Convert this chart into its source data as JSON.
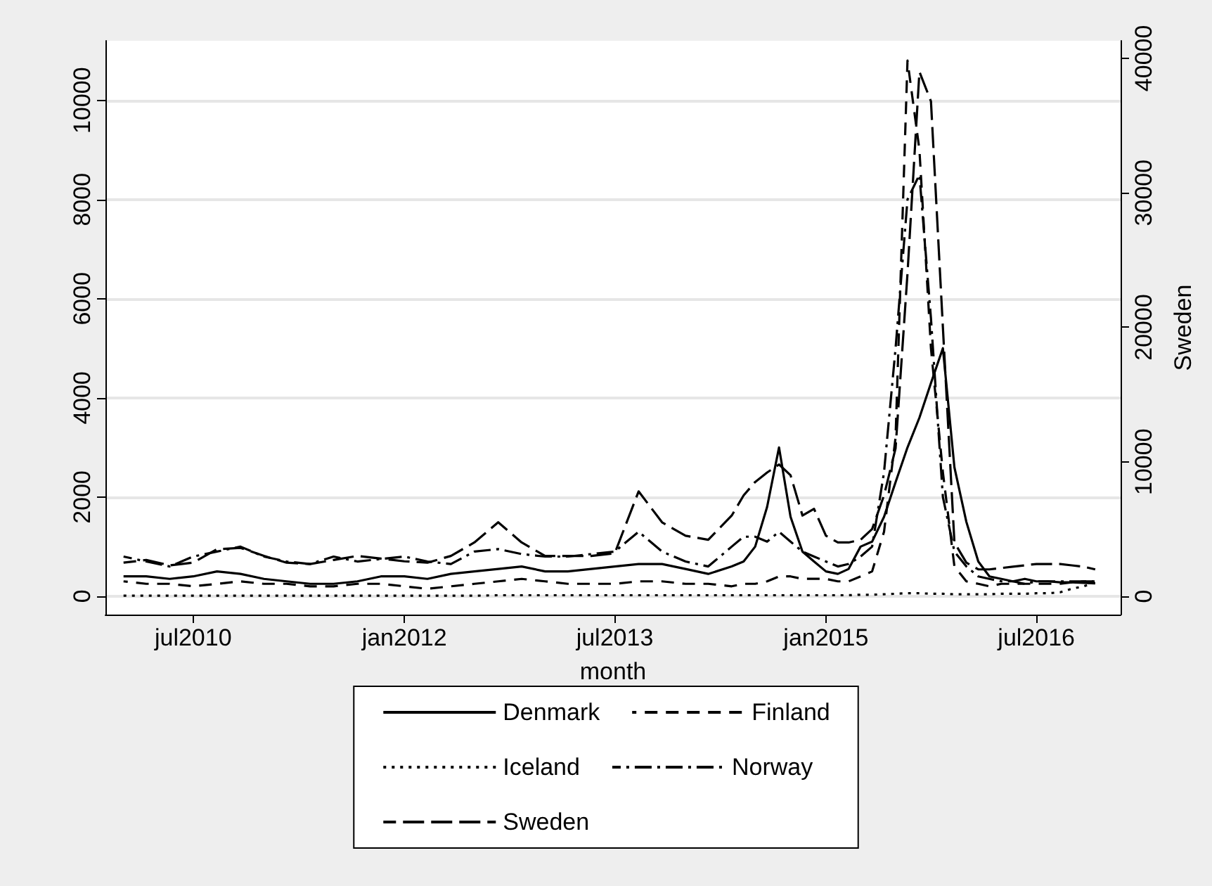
{
  "chart_data": {
    "type": "line",
    "xlabel": "month",
    "y2label": "Sweden",
    "x": [
      "2010-01",
      "2010-03",
      "2010-05",
      "2010-07",
      "2010-09",
      "2010-11",
      "2011-01",
      "2011-03",
      "2011-05",
      "2011-07",
      "2011-09",
      "2011-11",
      "2012-01",
      "2012-03",
      "2012-05",
      "2012-07",
      "2012-09",
      "2012-11",
      "2013-01",
      "2013-03",
      "2013-05",
      "2013-07",
      "2013-09",
      "2013-11",
      "2014-01",
      "2014-03",
      "2014-05",
      "2014-06",
      "2014-07",
      "2014-08",
      "2014-09",
      "2014-10",
      "2014-11",
      "2014-12",
      "2015-01",
      "2015-02",
      "2015-03",
      "2015-04",
      "2015-05",
      "2015-06",
      "2015-07",
      "2015-08",
      "2015-09",
      "2015-10",
      "2015-11",
      "2015-12",
      "2016-01",
      "2016-02",
      "2016-03",
      "2016-04",
      "2016-05",
      "2016-06",
      "2016-07",
      "2016-08",
      "2016-09",
      "2016-10",
      "2016-11",
      "2016-12"
    ],
    "series": [
      {
        "name": "Denmark",
        "color": "#000000",
        "line_style": "solid",
        "values": [
          400,
          400,
          350,
          400,
          500,
          450,
          350,
          300,
          250,
          250,
          300,
          400,
          400,
          350,
          450,
          500,
          550,
          600,
          500,
          500,
          550,
          600,
          650,
          650,
          550,
          450,
          600,
          700,
          1000,
          1800,
          3000,
          1600,
          900,
          700,
          500,
          450,
          550,
          1000,
          1100,
          1600,
          2300,
          3000,
          3600,
          4300,
          5000,
          2600,
          1500,
          700,
          400,
          350,
          300,
          350,
          300,
          300,
          280,
          280,
          270,
          260
        ]
      },
      {
        "name": "Finland",
        "color": "#000000",
        "line_style": "dashed",
        "values": [
          300,
          250,
          250,
          200,
          250,
          300,
          250,
          250,
          200,
          200,
          250,
          250,
          200,
          150,
          200,
          250,
          300,
          350,
          300,
          250,
          250,
          250,
          300,
          300,
          250,
          250,
          200,
          250,
          250,
          300,
          400,
          400,
          350,
          350,
          350,
          300,
          300,
          400,
          500,
          1300,
          3200,
          10800,
          9000,
          5000,
          2500,
          600,
          300,
          250,
          200,
          250,
          250,
          250,
          250,
          250,
          250,
          280,
          300,
          300
        ]
      },
      {
        "name": "Iceland",
        "color": "#000000",
        "line_style": "dotted",
        "values": [
          10,
          10,
          10,
          10,
          10,
          10,
          10,
          10,
          10,
          10,
          10,
          10,
          10,
          10,
          10,
          10,
          20,
          20,
          20,
          20,
          20,
          20,
          20,
          20,
          20,
          20,
          20,
          20,
          20,
          20,
          20,
          20,
          20,
          20,
          20,
          20,
          20,
          30,
          30,
          40,
          50,
          60,
          60,
          50,
          50,
          40,
          40,
          40,
          40,
          50,
          50,
          50,
          60,
          60,
          80,
          150,
          200,
          280
        ]
      },
      {
        "name": "Norway",
        "color": "#000000",
        "line_style": "dashdot",
        "values": [
          800,
          700,
          600,
          800,
          900,
          1000,
          800,
          700,
          650,
          800,
          700,
          750,
          800,
          700,
          650,
          900,
          950,
          850,
          800,
          800,
          850,
          900,
          1300,
          900,
          700,
          600,
          1000,
          1200,
          1200,
          1100,
          1300,
          1100,
          900,
          800,
          700,
          600,
          650,
          800,
          1000,
          2500,
          5000,
          8000,
          8500,
          5600,
          2000,
          900,
          600,
          400,
          350,
          300,
          300,
          250,
          300,
          300,
          300,
          300,
          300,
          300
        ]
      },
      {
        "name": "Sweden",
        "color": "#000000",
        "line_style": "longdash",
        "axis": "y2",
        "values": [
          2500,
          2700,
          2300,
          2500,
          3500,
          3600,
          3000,
          2500,
          2400,
          2700,
          3000,
          2800,
          2600,
          2500,
          3000,
          4000,
          5500,
          4000,
          3000,
          3000,
          3000,
          3200,
          7800,
          5500,
          4500,
          4200,
          6000,
          7500,
          8500,
          9200,
          9800,
          9000,
          6000,
          6500,
          4500,
          4000,
          4000,
          4200,
          5000,
          7500,
          11000,
          24000,
          39000,
          36800,
          20000,
          4000,
          2500,
          2000,
          2000,
          2100,
          2200,
          2300,
          2400,
          2400,
          2400,
          2300,
          2200,
          2000
        ]
      }
    ],
    "xlim": [
      "2009-11-15",
      "2017-02-05"
    ],
    "xticks": [
      {
        "value": "2010-07",
        "label": "jul2010"
      },
      {
        "value": "2012-01",
        "label": "jan2012"
      },
      {
        "value": "2013-07",
        "label": "jul2013"
      },
      {
        "value": "2015-01",
        "label": "jan2015"
      },
      {
        "value": "2016-07",
        "label": "jul2016"
      }
    ],
    "ylim": [
      -370,
      11200
    ],
    "yticks": [
      0,
      2000,
      4000,
      6000,
      8000,
      10000
    ],
    "y2lim": [
      -1360,
      41300
    ],
    "y2ticks": [
      0,
      10000,
      20000,
      30000,
      40000
    ],
    "grid": "y",
    "legend": "bottom",
    "marker": "none"
  }
}
